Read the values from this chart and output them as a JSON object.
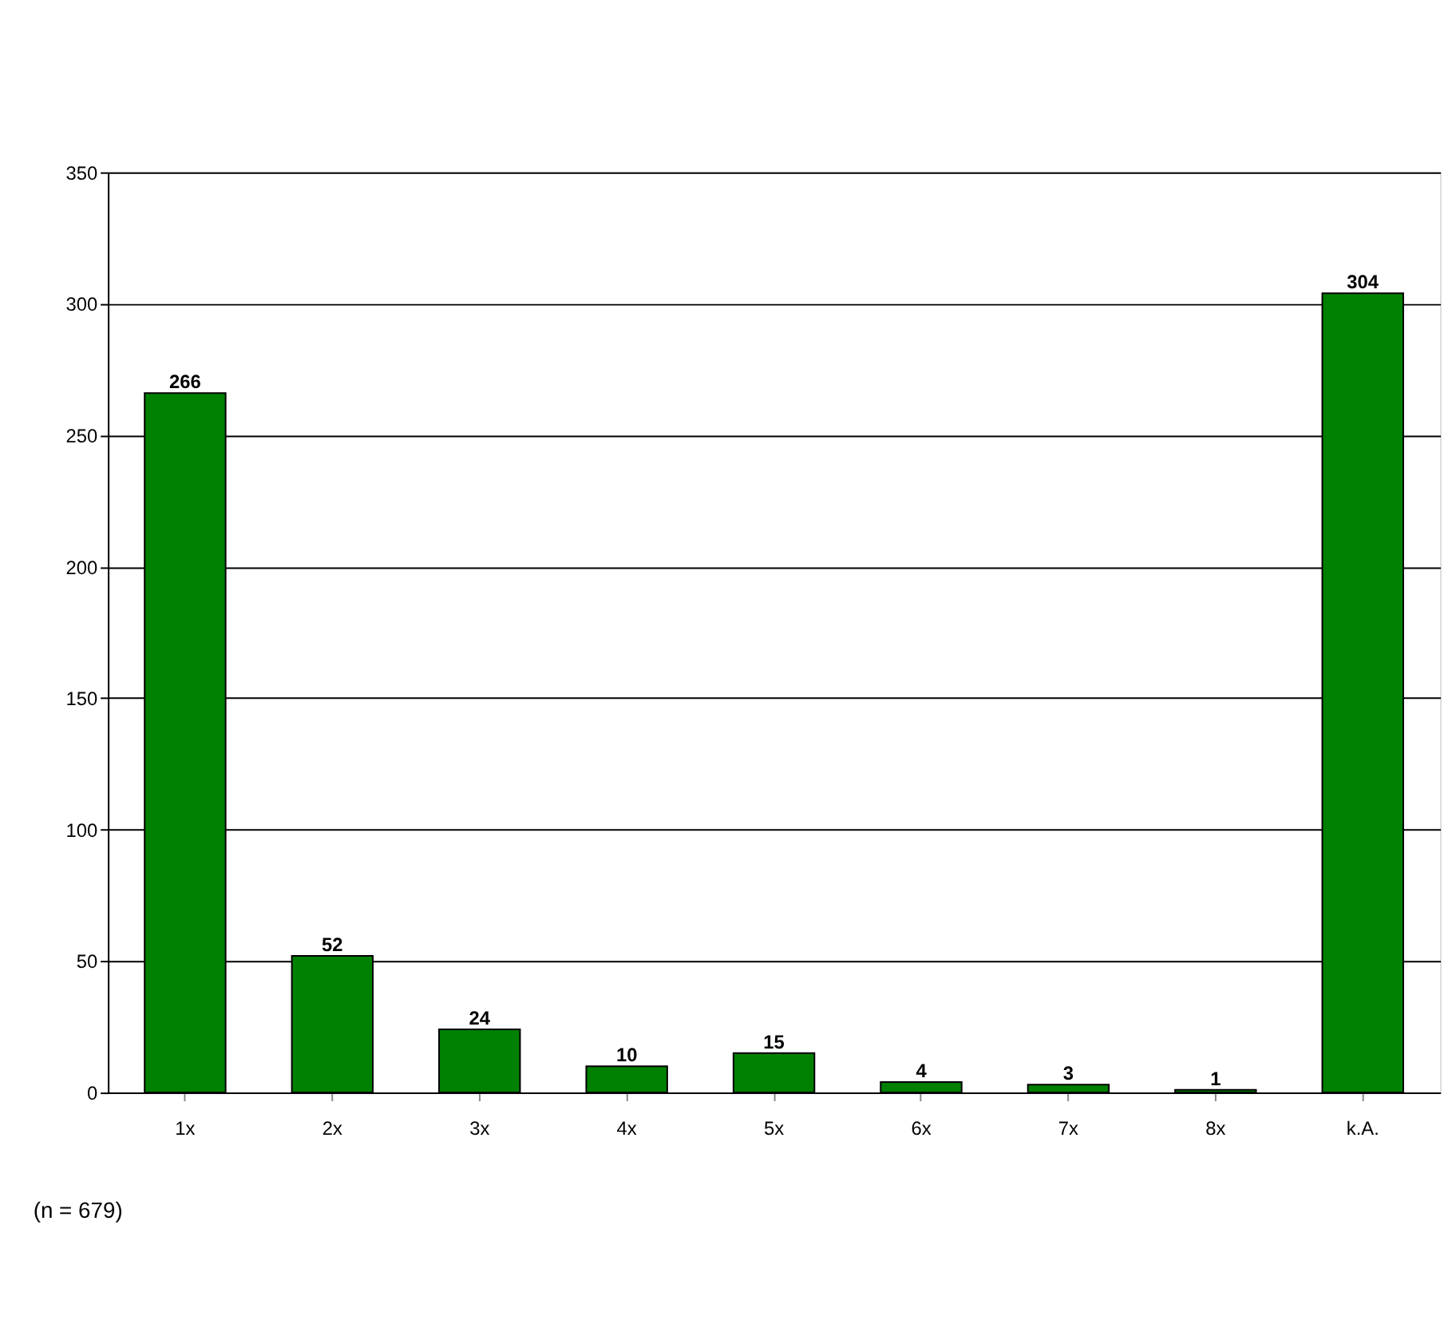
{
  "chart_data": {
    "type": "bar",
    "categories": [
      "1x",
      "2x",
      "3x",
      "4x",
      "5x",
      "6x",
      "7x",
      "8x",
      "k.A."
    ],
    "values": [
      266,
      52,
      24,
      10,
      15,
      4,
      3,
      1,
      304
    ],
    "color": "#008000",
    "ylim": [
      0,
      350
    ],
    "yticks": [
      0,
      50,
      100,
      150,
      200,
      250,
      300,
      350
    ],
    "grid": "y",
    "data_labels": true,
    "annotations": [
      "(n = 679)"
    ]
  }
}
